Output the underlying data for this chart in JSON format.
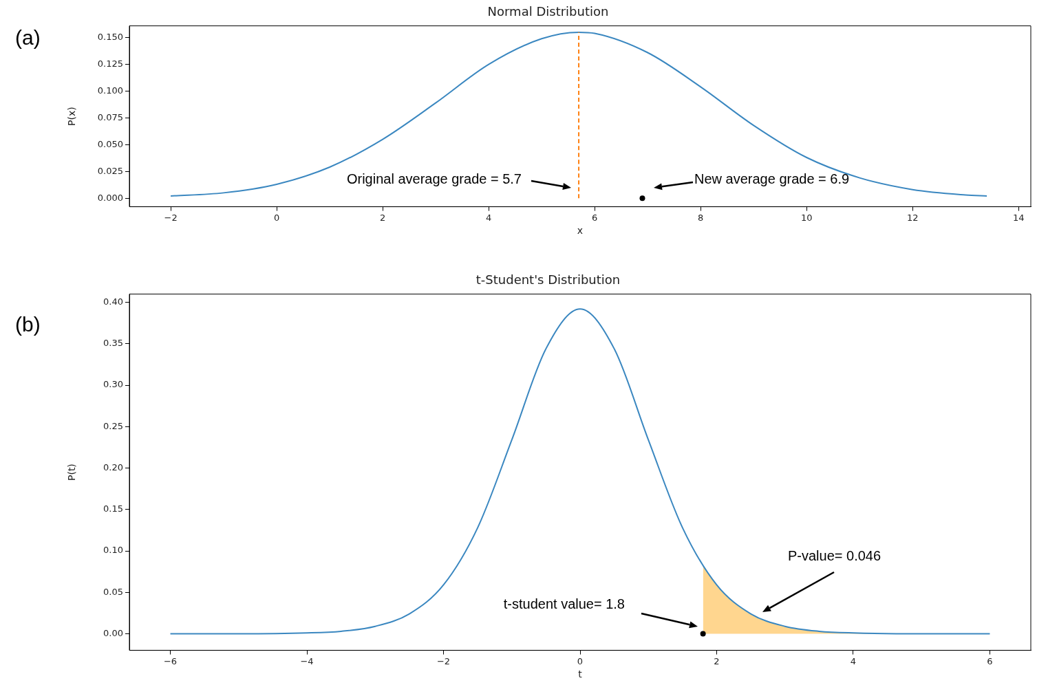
{
  "chart_data": [
    {
      "type": "line",
      "title": "Normal Distribution",
      "xlabel": "x",
      "ylabel": "P(x)",
      "xlim": [
        -2.78,
        14.23
      ],
      "ylim": [
        -0.008,
        0.161
      ],
      "xticks": [
        {
          "value": -2,
          "label": "−2"
        },
        0,
        2,
        4,
        6,
        8,
        10,
        12,
        14
      ],
      "yticks": [
        {
          "value": 0,
          "label": "0.000"
        },
        {
          "value": 0.025,
          "label": "0.025"
        },
        {
          "value": 0.05,
          "label": "0.050"
        },
        {
          "value": 0.075,
          "label": "0.075"
        },
        {
          "value": 0.1,
          "label": "0.100"
        },
        {
          "value": 0.125,
          "label": "0.125"
        },
        {
          "value": 0.15,
          "label": "0.150"
        }
      ],
      "series": [
        {
          "color": "#3a87c0",
          "x": [
            -2,
            -1,
            0,
            1,
            2,
            3,
            4,
            5,
            5.7,
            6,
            7,
            8,
            9,
            10,
            11,
            12,
            13,
            13.4
          ],
          "values": [
            0.002,
            0.005,
            0.013,
            0.029,
            0.055,
            0.089,
            0.125,
            0.149,
            0.155,
            0.154,
            0.136,
            0.104,
            0.068,
            0.038,
            0.019,
            0.008,
            0.003,
            0.002
          ]
        },
        {
          "type": "line",
          "color": "#ff7f0e",
          "line_style": "dashed",
          "x": [
            5.7,
            5.7
          ],
          "values": [
            0,
            0.155
          ]
        },
        {
          "type": "scatter",
          "marker": "circle",
          "color": "#000000",
          "x": [
            6.9
          ],
          "values": [
            0
          ]
        }
      ],
      "annotations": [
        "(a)",
        "Original average grade = 5.7",
        "New average grade = 6.9"
      ]
    },
    {
      "type": "line",
      "title": "t-Student's Distribution",
      "xlabel": "t",
      "ylabel": "P(t)",
      "xlim": [
        -6.6,
        6.6
      ],
      "ylim": [
        -0.02,
        0.41
      ],
      "xticks": [
        {
          "value": -6,
          "label": "−6"
        },
        {
          "value": -4,
          "label": "−4"
        },
        {
          "value": -2,
          "label": "−2"
        },
        0,
        2,
        4,
        6
      ],
      "yticks": [
        {
          "value": 0,
          "label": "0.00"
        },
        {
          "value": 0.05,
          "label": "0.05"
        },
        {
          "value": 0.1,
          "label": "0.10"
        },
        {
          "value": 0.15,
          "label": "0.15"
        },
        {
          "value": 0.2,
          "label": "0.20"
        },
        {
          "value": 0.25,
          "label": "0.25"
        },
        {
          "value": 0.3,
          "label": "0.30"
        },
        {
          "value": 0.35,
          "label": "0.35"
        },
        {
          "value": 0.4,
          "label": "0.40"
        }
      ],
      "series": [
        {
          "type": "area",
          "color": "#ffd68f",
          "x": [
            1.8,
            2,
            2.5,
            3,
            3.5,
            4,
            5,
            6
          ],
          "values": [
            0.082,
            0.059,
            0.024,
            0.009,
            0.003,
            0.001,
            0,
            0
          ]
        },
        {
          "color": "#3a87c0",
          "x": [
            -6,
            -5,
            -4,
            -3.5,
            -3,
            -2.5,
            -2,
            -1.5,
            -1,
            -0.5,
            0,
            0.5,
            1,
            1.5,
            2,
            2.5,
            3,
            3.5,
            4,
            5,
            6
          ],
          "values": [
            0,
            0,
            0.001,
            0.003,
            0.009,
            0.024,
            0.059,
            0.128,
            0.234,
            0.344,
            0.392,
            0.344,
            0.234,
            0.128,
            0.059,
            0.024,
            0.009,
            0.003,
            0.001,
            0,
            0
          ]
        },
        {
          "type": "scatter",
          "marker": "circle",
          "color": "#000000",
          "x": [
            1.8
          ],
          "values": [
            0
          ]
        }
      ],
      "annotations": [
        "(b)",
        "t-student value= 1.8",
        "P-value= 0.046"
      ]
    }
  ]
}
